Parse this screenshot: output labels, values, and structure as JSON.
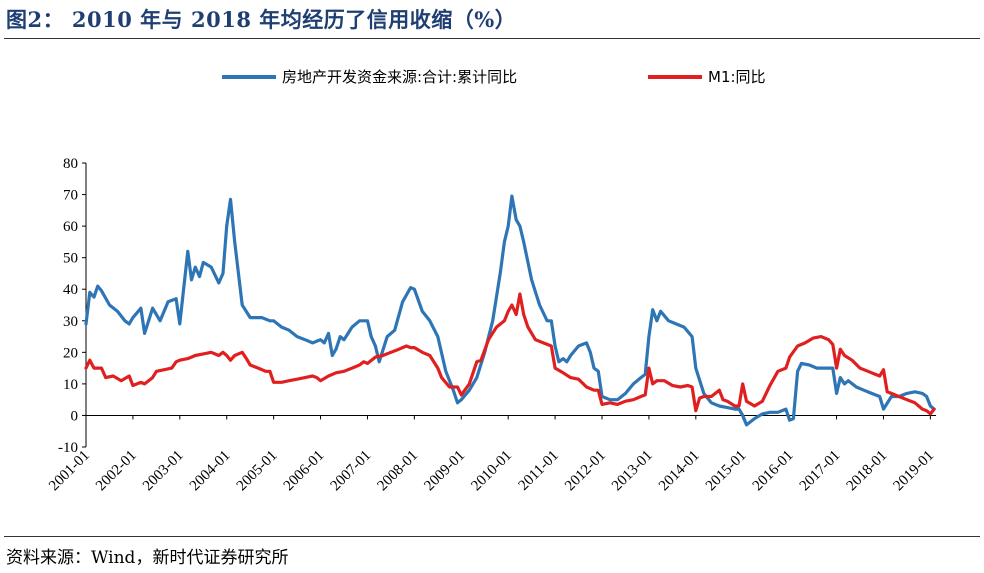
{
  "figure": {
    "title": "图2： 2010 年与 2018 年均经历了信用收缩（%）",
    "source": "资料来源：Wind，新时代证券研究所"
  },
  "chart_data": {
    "type": "line",
    "title": "2010 年与 2018 年均经历了信用收缩（%）",
    "xlabel": "",
    "ylabel": "%",
    "ylim": [
      -10,
      80
    ],
    "yticks": [
      -10,
      0,
      10,
      20,
      30,
      40,
      50,
      60,
      70,
      80
    ],
    "xlim": [
      2001.0,
      2019.12
    ],
    "xticks": [
      2001,
      2002,
      2003,
      2004,
      2005,
      2006,
      2007,
      2008,
      2009,
      2010,
      2011,
      2012,
      2013,
      2014,
      2015,
      2016,
      2017,
      2018,
      2019
    ],
    "xtick_labels": [
      "2001-01",
      "2002-01",
      "2003-01",
      "2004-01",
      "2005-01",
      "2006-01",
      "2007-01",
      "2008-01",
      "2009-01",
      "2010-01",
      "2011-01",
      "2012-01",
      "2013-01",
      "2014-01",
      "2015-01",
      "2016-01",
      "2017-01",
      "2018-01",
      "2019-01"
    ],
    "legend_position": "top-center",
    "series": [
      {
        "name": "房地产开发资金来源:合计:累计同比",
        "color": "#2e75b6",
        "points": [
          [
            2001.0,
            29
          ],
          [
            2001.08,
            39
          ],
          [
            2001.17,
            37.5
          ],
          [
            2001.25,
            41
          ],
          [
            2001.33,
            39.5
          ],
          [
            2001.5,
            35
          ],
          [
            2001.67,
            33
          ],
          [
            2001.83,
            30
          ],
          [
            2001.92,
            29
          ],
          [
            2002.0,
            31
          ],
          [
            2002.17,
            34
          ],
          [
            2002.25,
            26
          ],
          [
            2002.42,
            34
          ],
          [
            2002.58,
            30
          ],
          [
            2002.75,
            36
          ],
          [
            2002.92,
            37
          ],
          [
            2003.0,
            29
          ],
          [
            2003.08,
            40
          ],
          [
            2003.17,
            52
          ],
          [
            2003.25,
            43
          ],
          [
            2003.33,
            47
          ],
          [
            2003.42,
            44
          ],
          [
            2003.5,
            48.5
          ],
          [
            2003.67,
            47
          ],
          [
            2003.83,
            42
          ],
          [
            2003.92,
            45
          ],
          [
            2004.0,
            60
          ],
          [
            2004.08,
            68.5
          ],
          [
            2004.17,
            55
          ],
          [
            2004.33,
            35
          ],
          [
            2004.5,
            31
          ],
          [
            2004.75,
            31
          ],
          [
            2004.92,
            30
          ],
          [
            2005.0,
            30
          ],
          [
            2005.17,
            28
          ],
          [
            2005.33,
            27
          ],
          [
            2005.5,
            25
          ],
          [
            2005.67,
            24
          ],
          [
            2005.83,
            23
          ],
          [
            2006.0,
            24
          ],
          [
            2006.08,
            23
          ],
          [
            2006.17,
            26
          ],
          [
            2006.25,
            19
          ],
          [
            2006.33,
            21
          ],
          [
            2006.42,
            25
          ],
          [
            2006.5,
            24
          ],
          [
            2006.67,
            28
          ],
          [
            2006.83,
            30
          ],
          [
            2007.0,
            30
          ],
          [
            2007.08,
            25
          ],
          [
            2007.17,
            22
          ],
          [
            2007.25,
            17
          ],
          [
            2007.42,
            25
          ],
          [
            2007.58,
            27
          ],
          [
            2007.75,
            36
          ],
          [
            2007.92,
            40.5
          ],
          [
            2008.0,
            40
          ],
          [
            2008.17,
            33
          ],
          [
            2008.33,
            30
          ],
          [
            2008.5,
            25
          ],
          [
            2008.67,
            14
          ],
          [
            2008.83,
            8
          ],
          [
            2008.92,
            4
          ],
          [
            2009.0,
            5
          ],
          [
            2009.17,
            8
          ],
          [
            2009.33,
            12
          ],
          [
            2009.5,
            20
          ],
          [
            2009.67,
            30
          ],
          [
            2009.83,
            45
          ],
          [
            2009.92,
            55
          ],
          [
            2010.0,
            60
          ],
          [
            2010.08,
            69.5
          ],
          [
            2010.17,
            62
          ],
          [
            2010.25,
            60
          ],
          [
            2010.33,
            55
          ],
          [
            2010.5,
            43
          ],
          [
            2010.67,
            35
          ],
          [
            2010.83,
            30
          ],
          [
            2010.92,
            30
          ],
          [
            2011.0,
            22
          ],
          [
            2011.08,
            17
          ],
          [
            2011.17,
            18
          ],
          [
            2011.25,
            17
          ],
          [
            2011.33,
            19
          ],
          [
            2011.5,
            22
          ],
          [
            2011.67,
            23
          ],
          [
            2011.75,
            20
          ],
          [
            2011.83,
            15
          ],
          [
            2011.92,
            14
          ],
          [
            2012.0,
            6
          ],
          [
            2012.17,
            5
          ],
          [
            2012.33,
            5
          ],
          [
            2012.5,
            7
          ],
          [
            2012.67,
            10
          ],
          [
            2012.83,
            12
          ],
          [
            2012.92,
            13
          ],
          [
            2013.0,
            25
          ],
          [
            2013.08,
            33.5
          ],
          [
            2013.17,
            30
          ],
          [
            2013.25,
            33
          ],
          [
            2013.42,
            30
          ],
          [
            2013.58,
            29
          ],
          [
            2013.75,
            28
          ],
          [
            2013.92,
            25
          ],
          [
            2014.0,
            15
          ],
          [
            2014.17,
            7
          ],
          [
            2014.33,
            4
          ],
          [
            2014.5,
            3
          ],
          [
            2014.67,
            2.5
          ],
          [
            2014.83,
            2
          ],
          [
            2014.92,
            2
          ],
          [
            2015.0,
            0
          ],
          [
            2015.08,
            -3
          ],
          [
            2015.25,
            -1
          ],
          [
            2015.42,
            0.5
          ],
          [
            2015.58,
            1
          ],
          [
            2015.75,
            1
          ],
          [
            2015.92,
            2
          ],
          [
            2016.0,
            -1.5
          ],
          [
            2016.08,
            -1
          ],
          [
            2016.17,
            14
          ],
          [
            2016.25,
            16.5
          ],
          [
            2016.42,
            16
          ],
          [
            2016.58,
            15
          ],
          [
            2016.75,
            15
          ],
          [
            2016.92,
            15
          ],
          [
            2017.0,
            7
          ],
          [
            2017.08,
            12
          ],
          [
            2017.17,
            10
          ],
          [
            2017.25,
            11
          ],
          [
            2017.42,
            9
          ],
          [
            2017.58,
            8
          ],
          [
            2017.75,
            7
          ],
          [
            2017.92,
            6
          ],
          [
            2018.0,
            2
          ],
          [
            2018.17,
            6
          ],
          [
            2018.33,
            6
          ],
          [
            2018.5,
            7
          ],
          [
            2018.67,
            7.5
          ],
          [
            2018.83,
            7
          ],
          [
            2018.92,
            6
          ],
          [
            2019.0,
            3
          ],
          [
            2019.08,
            2
          ]
        ]
      },
      {
        "name": "M1:同比",
        "color": "#e02020",
        "points": [
          [
            2001.0,
            15
          ],
          [
            2001.08,
            17.5
          ],
          [
            2001.17,
            15
          ],
          [
            2001.33,
            15
          ],
          [
            2001.42,
            12
          ],
          [
            2001.58,
            12.5
          ],
          [
            2001.75,
            11
          ],
          [
            2001.92,
            12.5
          ],
          [
            2002.0,
            9.5
          ],
          [
            2002.17,
            10.5
          ],
          [
            2002.25,
            10
          ],
          [
            2002.42,
            12
          ],
          [
            2002.5,
            14
          ],
          [
            2002.67,
            14.5
          ],
          [
            2002.83,
            15
          ],
          [
            2002.92,
            17
          ],
          [
            2003.0,
            17.5
          ],
          [
            2003.17,
            18
          ],
          [
            2003.33,
            19
          ],
          [
            2003.5,
            19.5
          ],
          [
            2003.67,
            20
          ],
          [
            2003.83,
            19
          ],
          [
            2003.92,
            20
          ],
          [
            2004.0,
            19
          ],
          [
            2004.08,
            17.5
          ],
          [
            2004.17,
            19
          ],
          [
            2004.33,
            20
          ],
          [
            2004.42,
            18
          ],
          [
            2004.5,
            16
          ],
          [
            2004.67,
            15
          ],
          [
            2004.83,
            14
          ],
          [
            2004.92,
            14
          ],
          [
            2005.0,
            10.5
          ],
          [
            2005.17,
            10.5
          ],
          [
            2005.33,
            11
          ],
          [
            2005.5,
            11.5
          ],
          [
            2005.67,
            12
          ],
          [
            2005.83,
            12.5
          ],
          [
            2005.92,
            12
          ],
          [
            2006.0,
            11
          ],
          [
            2006.17,
            12.5
          ],
          [
            2006.33,
            13.5
          ],
          [
            2006.5,
            14
          ],
          [
            2006.67,
            15
          ],
          [
            2006.83,
            16
          ],
          [
            2006.92,
            17
          ],
          [
            2007.0,
            16.5
          ],
          [
            2007.17,
            18.5
          ],
          [
            2007.33,
            19
          ],
          [
            2007.5,
            20
          ],
          [
            2007.67,
            21
          ],
          [
            2007.83,
            22
          ],
          [
            2007.92,
            21.5
          ],
          [
            2008.0,
            21.5
          ],
          [
            2008.17,
            20
          ],
          [
            2008.33,
            19
          ],
          [
            2008.5,
            15
          ],
          [
            2008.58,
            12
          ],
          [
            2008.75,
            9
          ],
          [
            2008.92,
            9
          ],
          [
            2009.0,
            6.5
          ],
          [
            2009.17,
            10
          ],
          [
            2009.33,
            17
          ],
          [
            2009.42,
            17.5
          ],
          [
            2009.58,
            24
          ],
          [
            2009.75,
            28
          ],
          [
            2009.92,
            30
          ],
          [
            2010.0,
            33
          ],
          [
            2010.08,
            35
          ],
          [
            2010.17,
            32
          ],
          [
            2010.25,
            38.5
          ],
          [
            2010.33,
            32
          ],
          [
            2010.42,
            28
          ],
          [
            2010.58,
            24
          ],
          [
            2010.75,
            23
          ],
          [
            2010.92,
            22
          ],
          [
            2011.0,
            15
          ],
          [
            2011.17,
            13.5
          ],
          [
            2011.33,
            12
          ],
          [
            2011.5,
            11.5
          ],
          [
            2011.67,
            9
          ],
          [
            2011.83,
            8
          ],
          [
            2011.92,
            8
          ],
          [
            2012.0,
            3.5
          ],
          [
            2012.17,
            4
          ],
          [
            2012.33,
            3.5
          ],
          [
            2012.5,
            4.5
          ],
          [
            2012.67,
            5
          ],
          [
            2012.83,
            6
          ],
          [
            2012.92,
            6.5
          ],
          [
            2013.0,
            15
          ],
          [
            2013.08,
            10
          ],
          [
            2013.17,
            11
          ],
          [
            2013.33,
            11
          ],
          [
            2013.5,
            9.5
          ],
          [
            2013.67,
            9
          ],
          [
            2013.83,
            9.5
          ],
          [
            2013.92,
            9
          ],
          [
            2014.0,
            1.5
          ],
          [
            2014.08,
            5.5
          ],
          [
            2014.17,
            6
          ],
          [
            2014.33,
            6
          ],
          [
            2014.5,
            8
          ],
          [
            2014.58,
            5
          ],
          [
            2014.67,
            4.5
          ],
          [
            2014.83,
            3
          ],
          [
            2014.92,
            3
          ],
          [
            2015.0,
            10
          ],
          [
            2015.08,
            4.5
          ],
          [
            2015.25,
            3
          ],
          [
            2015.42,
            4.5
          ],
          [
            2015.58,
            9.5
          ],
          [
            2015.75,
            14
          ],
          [
            2015.92,
            15
          ],
          [
            2016.0,
            18.5
          ],
          [
            2016.17,
            22
          ],
          [
            2016.33,
            23
          ],
          [
            2016.5,
            24.5
          ],
          [
            2016.67,
            25
          ],
          [
            2016.83,
            24
          ],
          [
            2016.92,
            22.5
          ],
          [
            2017.0,
            15
          ],
          [
            2017.08,
            21
          ],
          [
            2017.17,
            19
          ],
          [
            2017.33,
            17.5
          ],
          [
            2017.5,
            15
          ],
          [
            2017.67,
            14
          ],
          [
            2017.83,
            13
          ],
          [
            2017.92,
            12.5
          ],
          [
            2018.0,
            14.5
          ],
          [
            2018.08,
            7.5
          ],
          [
            2018.17,
            7
          ],
          [
            2018.33,
            6
          ],
          [
            2018.5,
            5
          ],
          [
            2018.67,
            4
          ],
          [
            2018.83,
            2
          ],
          [
            2018.92,
            1.5
          ],
          [
            2019.0,
            0.5
          ],
          [
            2019.08,
            2
          ]
        ]
      }
    ]
  }
}
